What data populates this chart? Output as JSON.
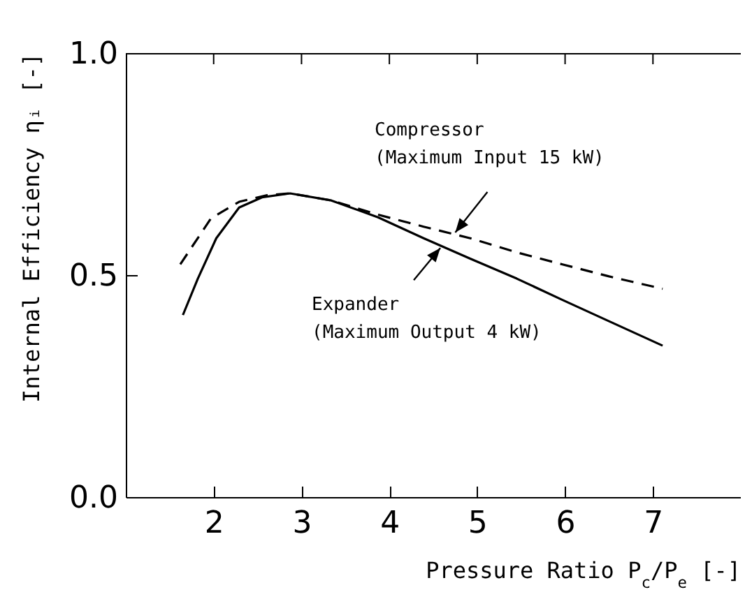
{
  "chart_data": {
    "type": "line",
    "xlabel": "Pressure Ratio P$_{c}$/P$_{e}$ [-]",
    "ylabel": "Internal Efficiency ηᵢ [-]",
    "xlim": [
      1,
      8
    ],
    "ylim": [
      0,
      1
    ],
    "xticks": [
      2,
      3,
      4,
      5,
      6,
      7
    ],
    "yticks": [
      {
        "value": 0,
        "label": "0.0"
      },
      {
        "value": 0.5,
        "label": "0.5"
      },
      {
        "value": 1,
        "label": "1.0"
      }
    ],
    "grid": false,
    "marker": "none",
    "series": [
      {
        "color": "#000000",
        "line_style": "dashed",
        "x": [
          1.62,
          1.97,
          2.29,
          2.61,
          2.87,
          3.34,
          3.87,
          4.39,
          4.92,
          5.45,
          5.97,
          6.5,
          7.11
        ],
        "values": [
          0.524,
          0.628,
          0.665,
          0.68,
          0.684,
          0.668,
          0.636,
          0.609,
          0.583,
          0.551,
          0.524,
          0.497,
          0.469
        ]
      },
      {
        "color": "#000000",
        "line_style": "solid",
        "x": [
          1.65,
          1.82,
          2.03,
          2.29,
          2.55,
          2.87,
          3.34,
          3.87,
          4.39,
          4.92,
          5.45,
          5.97,
          6.5,
          7.11
        ],
        "values": [
          0.41,
          0.492,
          0.583,
          0.652,
          0.675,
          0.684,
          0.668,
          0.63,
          0.583,
          0.537,
          0.492,
          0.444,
          0.396,
          0.341
        ]
      }
    ],
    "annotations": [
      {
        "text": "Compressor\n(Maximum Input 15 kW)",
        "x": 4.75,
        "y": 0.596
      },
      {
        "text": "Expander\n(Maximum Output 4 kW)",
        "x": 4.58,
        "y": 0.561
      }
    ]
  }
}
